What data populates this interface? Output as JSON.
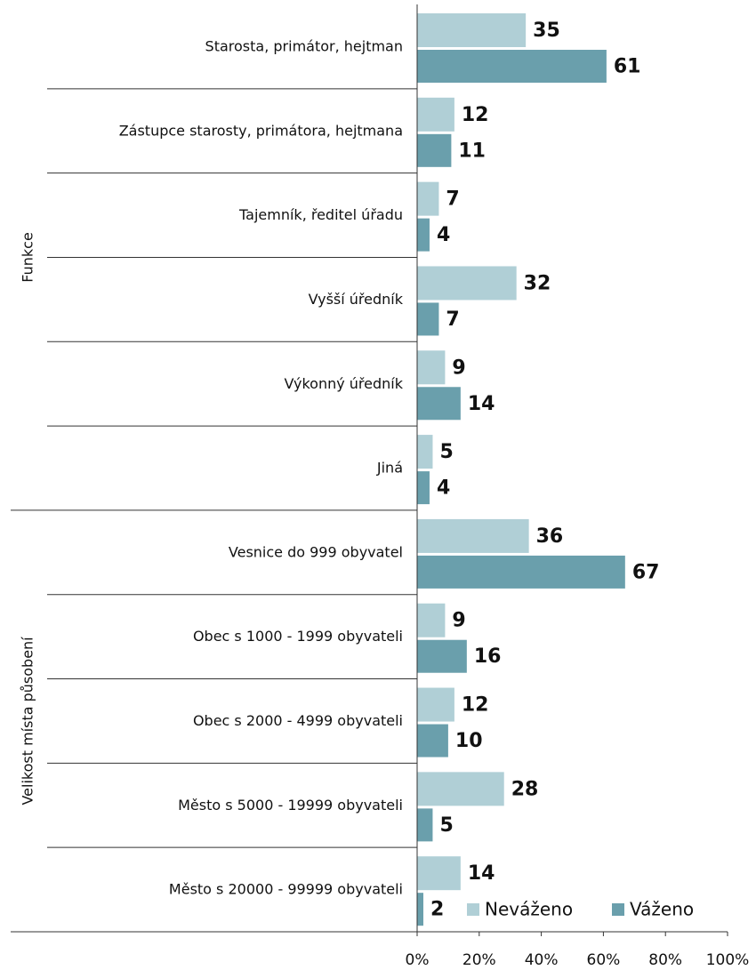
{
  "chart_data": {
    "type": "bar",
    "orientation": "horizontal",
    "groups": [
      {
        "name": "Funkce",
        "categories": [
          "Starosta, primátor, hejtman",
          "Zástupce starosty, primátora, hejtmana",
          "Tajemník, ředitel úřadu",
          "Vyšší úředník",
          "Výkonný úředník",
          "Jiná"
        ]
      },
      {
        "name": "Velikost místa působení",
        "categories": [
          "Vesnice do 999 obyvatel",
          "Obec s 1000 - 1999 obyvateli",
          "Obec s 2000 - 4999 obyvateli",
          "Město s 5000 - 19999 obyvateli",
          "Město s 20000 - 99999 obyvateli"
        ]
      }
    ],
    "series": [
      {
        "name": "Neváženo",
        "color": "#b0cfd6",
        "values": [
          35,
          12,
          7,
          32,
          9,
          5,
          36,
          9,
          12,
          28,
          14
        ]
      },
      {
        "name": "Váženo",
        "color": "#6a9fac",
        "values": [
          61,
          11,
          4,
          7,
          14,
          4,
          67,
          16,
          10,
          5,
          2
        ]
      }
    ],
    "xlim": [
      0,
      100
    ],
    "xticks": [
      {
        "value": 0,
        "label": "0%"
      },
      {
        "value": 20,
        "label": "20%"
      },
      {
        "value": 40,
        "label": "40%"
      },
      {
        "value": 60,
        "label": "60%"
      },
      {
        "value": 80,
        "label": "80%"
      },
      {
        "value": 100,
        "label": "100%"
      }
    ],
    "legend": "lower right"
  }
}
